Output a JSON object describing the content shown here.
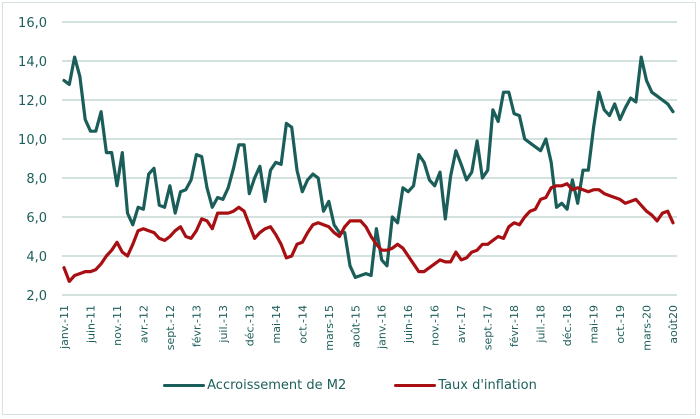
{
  "chart_data": {
    "type": "line",
    "title": "",
    "xlabel": "",
    "ylabel": "",
    "ylim": [
      2.0,
      16.0
    ],
    "yticks": [
      "2,0",
      "4,0",
      "6,0",
      "8,0",
      "10,0",
      "12,0",
      "14,0",
      "16,0"
    ],
    "ytick_values": [
      2,
      4,
      6,
      8,
      10,
      12,
      14,
      16
    ],
    "grid": true,
    "legend_position": "bottom",
    "x_start": "janv.-11",
    "x_end": "août-20",
    "n_points": 116,
    "tick_every": 5,
    "xticks": [
      "janv.-11",
      "juin-11",
      "nov.-11",
      "avr.-12",
      "sept.-12",
      "févr.-13",
      "juil.-13",
      "déc.-13",
      "mai-14",
      "oct.-14",
      "mars-15",
      "août-15",
      "janv.-16",
      "juin-16",
      "nov.-16",
      "avr.-17",
      "sept.-17",
      "févr.-18",
      "juil.-18",
      "déc.-18",
      "mai-19",
      "oct.-19",
      "mars-20",
      "août20"
    ],
    "series": [
      {
        "name": "Accroissement de M2",
        "color": "#1b5e59",
        "values": [
          13.0,
          12.8,
          14.2,
          13.2,
          11.0,
          10.4,
          10.4,
          11.4,
          9.3,
          9.3,
          7.6,
          9.3,
          6.2,
          5.6,
          6.5,
          6.4,
          8.2,
          8.5,
          6.6,
          6.5,
          7.6,
          6.2,
          7.3,
          7.4,
          7.9,
          9.2,
          9.1,
          7.5,
          6.5,
          7.0,
          6.9,
          7.5,
          8.5,
          9.7,
          9.7,
          7.2,
          8.0,
          8.6,
          6.8,
          8.4,
          8.8,
          8.7,
          10.8,
          10.6,
          8.4,
          7.3,
          7.9,
          8.2,
          8.0,
          6.3,
          6.8,
          5.6,
          5.2,
          5.2,
          3.5,
          2.9,
          3.0,
          3.1,
          3.0,
          5.4,
          3.8,
          3.5,
          6.0,
          5.7,
          7.5,
          7.3,
          7.6,
          9.2,
          8.8,
          7.9,
          7.6,
          8.3,
          5.9,
          8.1,
          9.4,
          8.7,
          7.9,
          8.3,
          9.9,
          8.0,
          8.4,
          11.5,
          10.9,
          12.4,
          12.4,
          11.3,
          11.2,
          10.0,
          9.8,
          9.6,
          9.4,
          10.0,
          8.8,
          6.5,
          6.7,
          6.4,
          7.9,
          6.7,
          8.4,
          8.4,
          10.6,
          12.4,
          11.5,
          11.2,
          11.8,
          11.0,
          11.6,
          12.1,
          11.9,
          14.2,
          13.0,
          12.4,
          12.2,
          12.0,
          11.8,
          11.4
        ]
      },
      {
        "name": "Taux d'inflation",
        "color": "#a80f12",
        "values": [
          3.4,
          2.7,
          3.0,
          3.1,
          3.2,
          3.2,
          3.3,
          3.6,
          4.0,
          4.3,
          4.7,
          4.2,
          4.0,
          4.6,
          5.3,
          5.4,
          5.3,
          5.2,
          4.9,
          4.8,
          5.0,
          5.3,
          5.5,
          5.0,
          4.9,
          5.3,
          5.9,
          5.8,
          5.4,
          6.2,
          6.2,
          6.2,
          6.3,
          6.5,
          6.3,
          5.6,
          4.9,
          5.2,
          5.4,
          5.5,
          5.1,
          4.6,
          3.9,
          4.0,
          4.6,
          4.7,
          5.2,
          5.6,
          5.7,
          5.6,
          5.5,
          5.2,
          5.0,
          5.5,
          5.8,
          5.8,
          5.8,
          5.5,
          5.0,
          4.6,
          4.3,
          4.3,
          4.4,
          4.6,
          4.4,
          4.0,
          3.6,
          3.2,
          3.2,
          3.4,
          3.6,
          3.8,
          3.7,
          3.7,
          4.2,
          3.8,
          3.9,
          4.2,
          4.3,
          4.6,
          4.6,
          4.8,
          5.0,
          4.9,
          5.5,
          5.7,
          5.6,
          6.0,
          6.3,
          6.4,
          6.9,
          7.0,
          7.5,
          7.6,
          7.6,
          7.7,
          7.4,
          7.5,
          7.4,
          7.3,
          7.4,
          7.4,
          7.2,
          7.1,
          7.0,
          6.9,
          6.7,
          6.8,
          6.9,
          6.6,
          6.3,
          6.1,
          5.8,
          6.2,
          6.3,
          5.7
        ]
      }
    ]
  }
}
